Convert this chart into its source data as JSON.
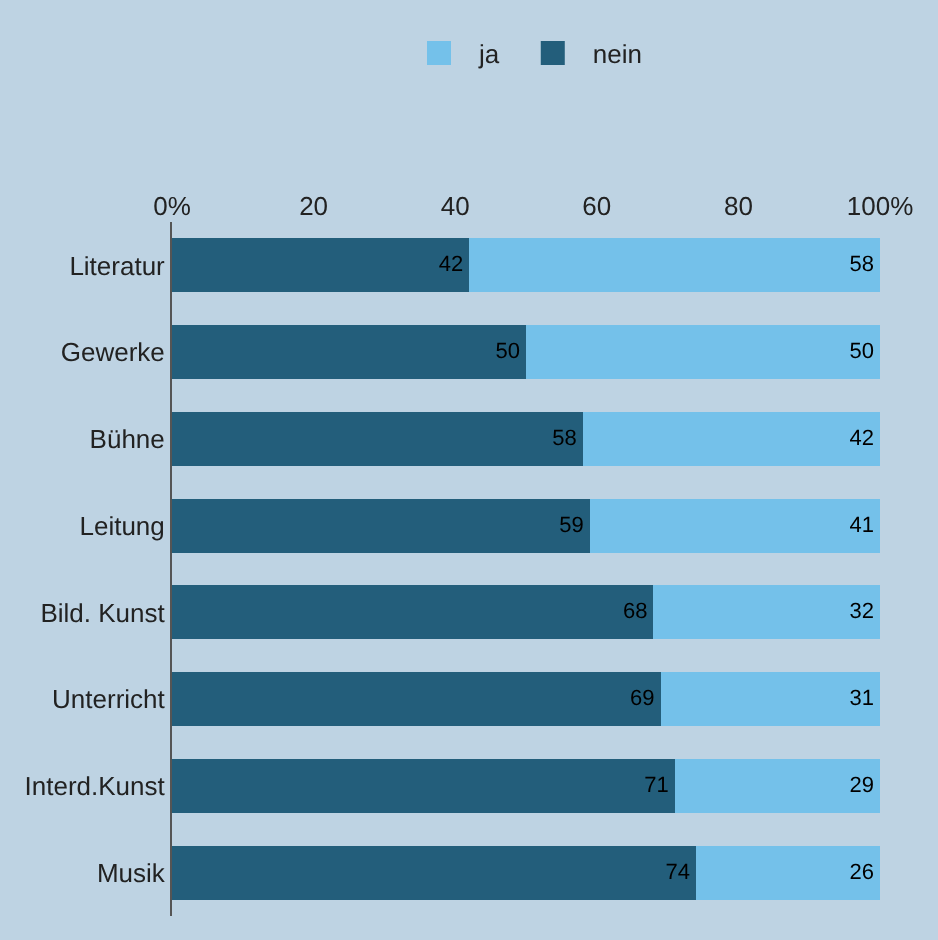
{
  "chart_data": {
    "type": "bar",
    "orientation": "horizontal",
    "stacked": true,
    "categories": [
      "Literatur",
      "Gewerke",
      "Bühne",
      "Leitung",
      "Bild. Kunst",
      "Unterricht",
      "Interd.Kunst",
      "Musik"
    ],
    "series": [
      {
        "name": "nein",
        "color": "#235e7b",
        "values": [
          42,
          50,
          58,
          59,
          68,
          69,
          71,
          74
        ]
      },
      {
        "name": "ja",
        "color": "#74c1ea",
        "values": [
          58,
          50,
          42,
          41,
          32,
          31,
          29,
          26
        ]
      }
    ],
    "xlim": [
      0,
      100
    ],
    "xticks": [
      {
        "value": 0,
        "label": "0%"
      },
      20,
      40,
      60,
      80,
      {
        "value": 100,
        "label": "100%"
      }
    ],
    "data_labels": true,
    "legend": "top",
    "grid": false
  }
}
